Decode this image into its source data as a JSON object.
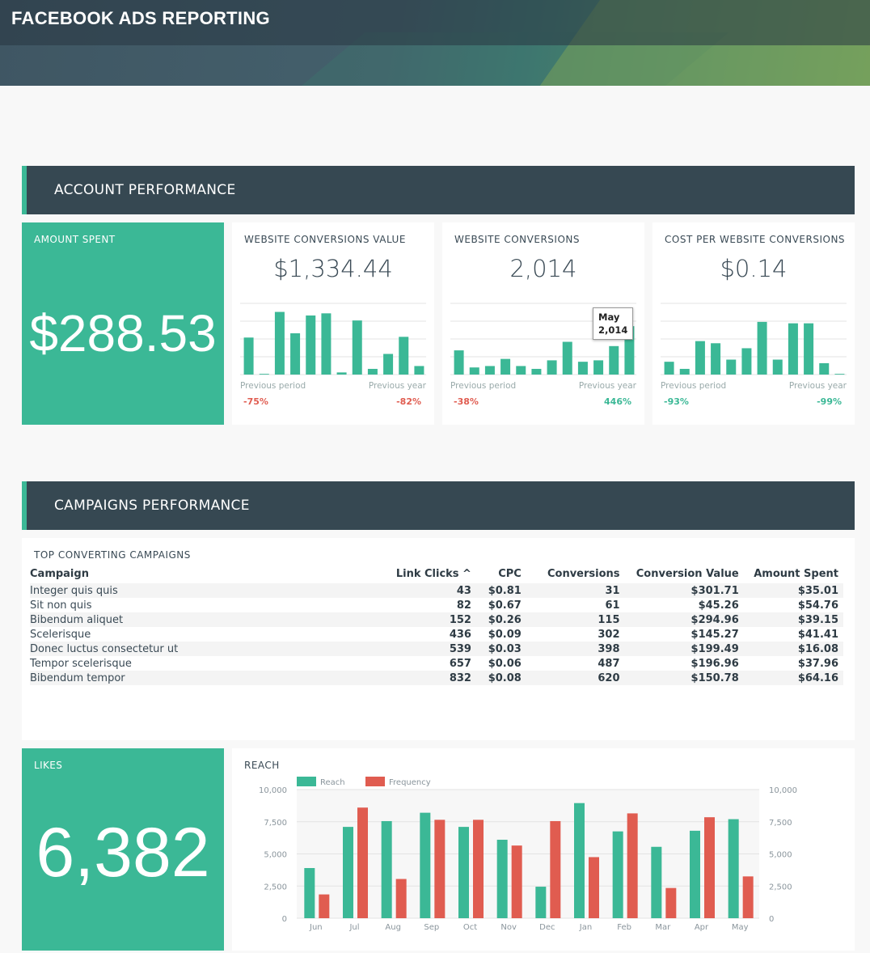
{
  "header": {
    "title": "FACEBOOK ADS REPORTING"
  },
  "sections": {
    "account": "ACCOUNT PERFORMANCE",
    "campaigns": "CAMPAIGNS PERFORMANCE"
  },
  "amount_spent": {
    "label": "AMOUNT SPENT",
    "value": "$288.53"
  },
  "kpis": [
    {
      "label": "WEBSITE CONVERSIONS VALUE",
      "value": "$1,334.44",
      "prev_period_label": "Previous period",
      "prev_year_label": "Previous year",
      "prev_period_change": "-75%",
      "prev_year_change": "-82%",
      "bars": [
        52,
        1,
        88,
        58,
        83,
        86,
        3,
        76,
        8,
        29,
        53,
        12
      ]
    },
    {
      "label": "WEBSITE CONVERSIONS",
      "value": "2,014",
      "prev_period_label": "Previous period",
      "prev_year_label": "Previous year",
      "prev_period_change": "-38%",
      "prev_year_change": "446%",
      "bars": [
        34,
        10,
        12,
        22,
        12,
        8,
        20,
        46,
        18,
        20,
        40,
        68
      ],
      "tooltip": {
        "month": "May",
        "value": "2,014"
      }
    },
    {
      "label": "COST PER WEBSITE CONVERSIONS",
      "value": "$0.14",
      "prev_period_label": "Previous period",
      "prev_year_label": "Previous year",
      "prev_period_change": "-93%",
      "prev_year_change": "-99%",
      "bars": [
        18,
        8,
        47,
        44,
        21,
        37,
        74,
        21,
        72,
        72,
        16,
        1
      ]
    }
  ],
  "campaigns_table": {
    "title": "TOP CONVERTING CAMPAIGNS",
    "columns": [
      "Campaign",
      "Link Clicks ^",
      "CPC",
      "Conversions",
      "Conversion Value",
      "Amount Spent"
    ],
    "rows": [
      [
        "Integer quis quis",
        "43",
        "$0.81",
        "31",
        "$301.71",
        "$35.01"
      ],
      [
        "Sit non quis",
        "82",
        "$0.67",
        "61",
        "$45.26",
        "$54.76"
      ],
      [
        "Bibendum aliquet",
        "152",
        "$0.26",
        "115",
        "$294.96",
        "$39.15"
      ],
      [
        "Scelerisque",
        "436",
        "$0.09",
        "302",
        "$145.27",
        "$41.41"
      ],
      [
        "Donec luctus consectetur ut",
        "539",
        "$0.03",
        "398",
        "$199.49",
        "$16.08"
      ],
      [
        "Tempor scelerisque",
        "657",
        "$0.06",
        "487",
        "$196.96",
        "$37.96"
      ],
      [
        "Bibendum tempor",
        "832",
        "$0.08",
        "620",
        "$150.78",
        "$64.16"
      ]
    ]
  },
  "likes": {
    "label": "LIKES",
    "value": "6,382"
  },
  "colors": {
    "teal": "#3bb896",
    "red": "#e05c50",
    "dark": "#364852"
  },
  "chart_data": {
    "type": "bar",
    "title": "REACH",
    "categories": [
      "Jun",
      "Jul",
      "Aug",
      "Sep",
      "Oct",
      "Nov",
      "Dec",
      "Jan",
      "Feb",
      "Mar",
      "Apr",
      "May"
    ],
    "series": [
      {
        "name": "Reach",
        "color": "#3bb896",
        "values": [
          3900,
          7100,
          7550,
          8200,
          7100,
          6100,
          2450,
          8950,
          6750,
          5550,
          6800,
          7700
        ]
      },
      {
        "name": "Frequency",
        "color": "#e05c50",
        "values": [
          1850,
          8600,
          3050,
          7650,
          7650,
          5650,
          7550,
          4750,
          8150,
          2350,
          7850,
          3250
        ]
      }
    ],
    "ylim": [
      0,
      10000
    ],
    "yticks": [
      "0",
      "2,500",
      "5,000",
      "7,500",
      "10,000"
    ],
    "y2ticks": [
      "0",
      "2,500",
      "5,000",
      "7,500",
      "10,000"
    ],
    "legend": "top-left",
    "grid": true
  }
}
